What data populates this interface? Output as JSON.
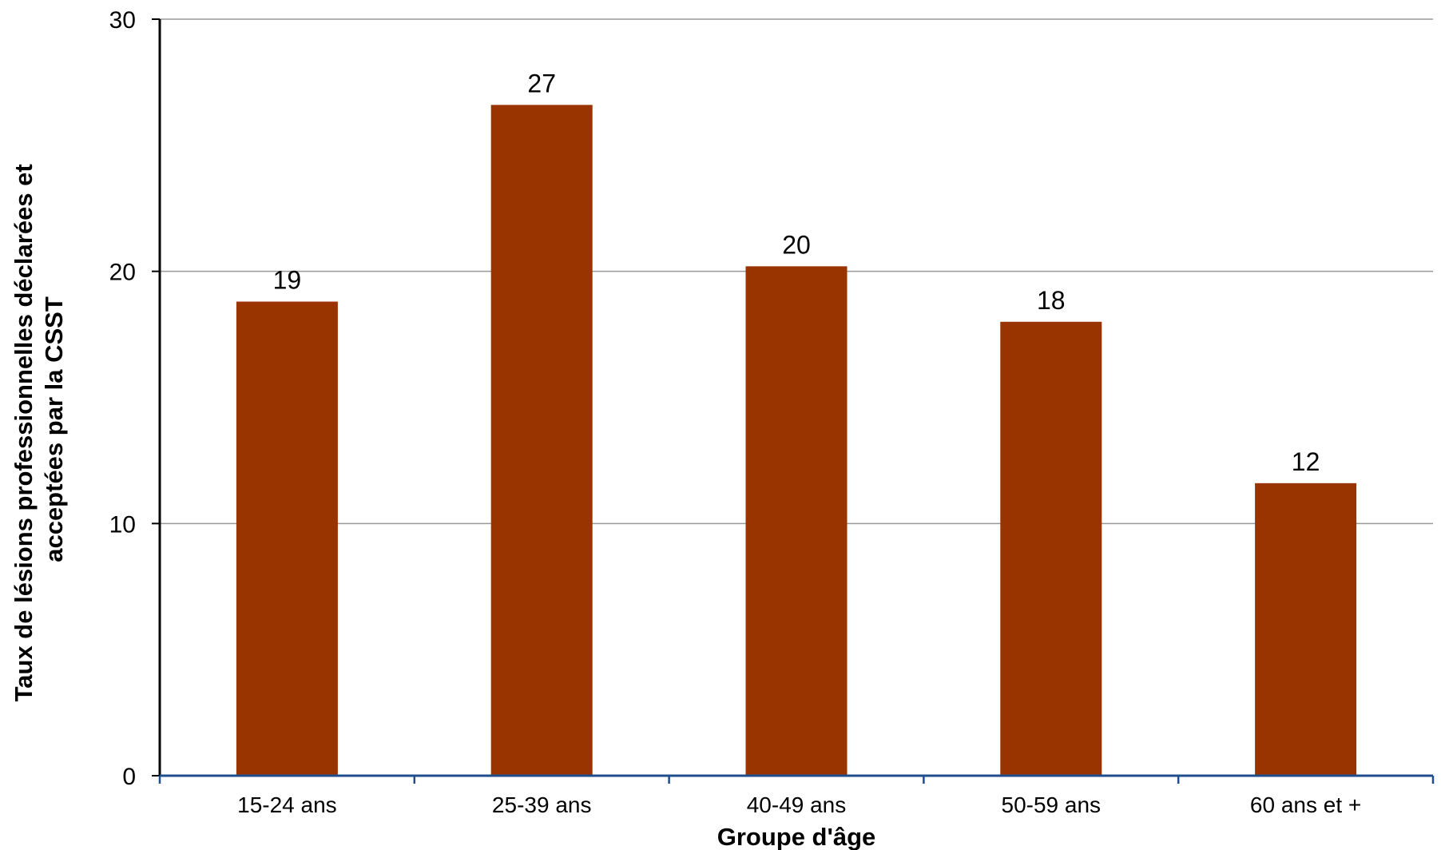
{
  "chart_data": {
    "type": "bar",
    "categories": [
      "15-24 ans",
      "25-39 ans",
      "40-49 ans",
      "50-59 ans",
      "60 ans et +"
    ],
    "values": [
      18.8,
      26.6,
      20.2,
      18.0,
      11.6
    ],
    "data_labels": [
      "19",
      "27",
      "20",
      "18",
      "12"
    ],
    "title": "",
    "xlabel": "Groupe d'âge",
    "ylabel_lines": [
      "Taux de lésions professionnelles déclarées et",
      "acceptées par la CSST"
    ],
    "ylim": [
      0,
      30
    ],
    "yticks": [
      0,
      10,
      20,
      30
    ],
    "grid": true,
    "bar_color": "#993300",
    "grid_color": "#999999",
    "x_axis_color": "#1f4e8c",
    "y_axis_color": "#000000"
  }
}
